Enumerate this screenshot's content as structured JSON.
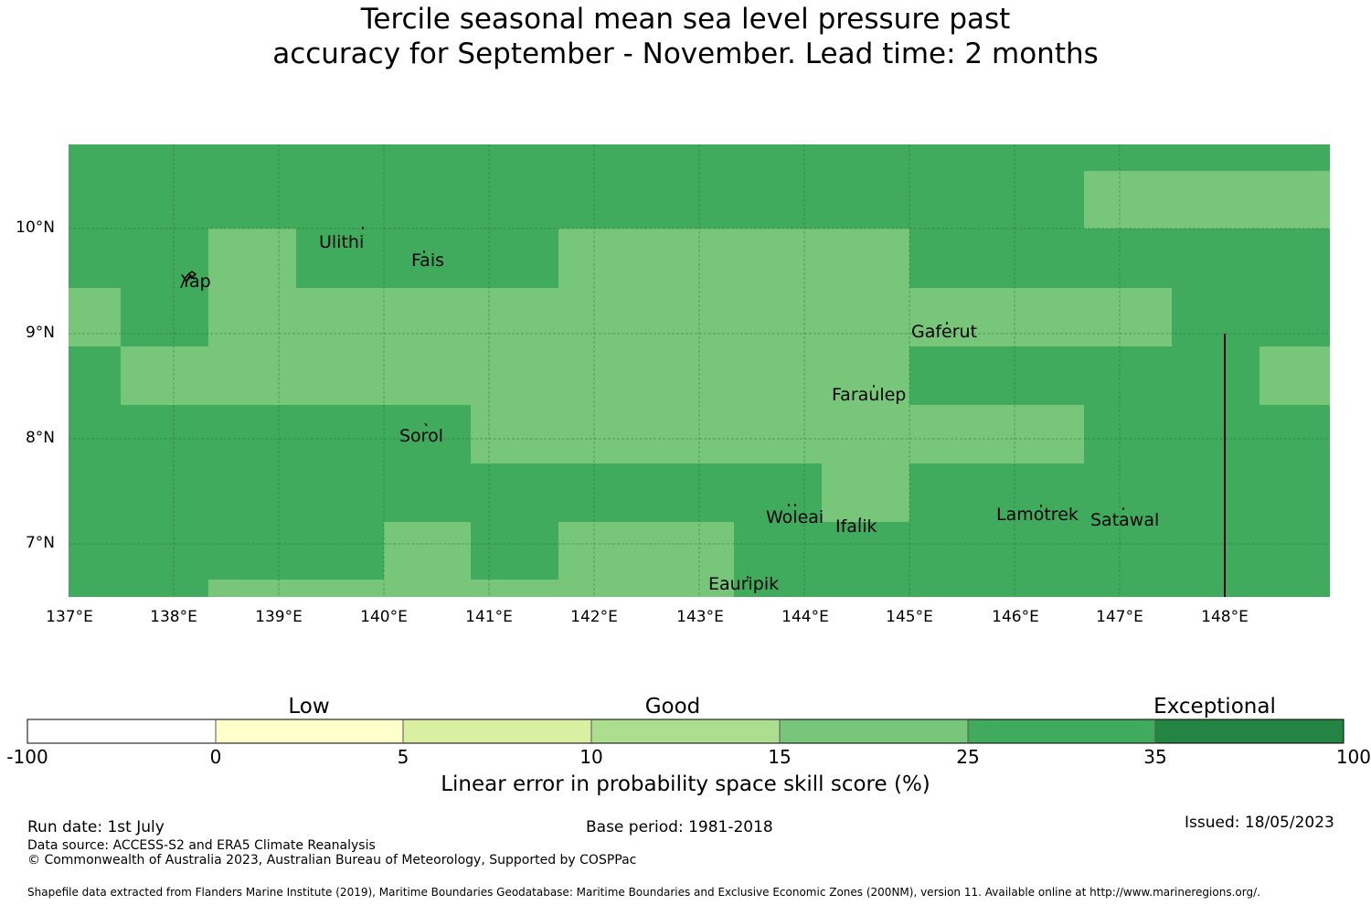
{
  "title": {
    "line1": "Tercile seasonal mean sea level pressure past",
    "line2": "accuracy for September - November. Lead time: 2 months"
  },
  "map": {
    "lat_labels": [
      "10°N",
      "9°N",
      "8°N",
      "7°N"
    ],
    "lon_labels": [
      "137°E",
      "138°E",
      "139°E",
      "140°E",
      "141°E",
      "142°E",
      "143°E",
      "144°E",
      "145°E",
      "146°E",
      "147°E",
      "148°E"
    ],
    "places": [
      {
        "name": "Ulithi"
      },
      {
        "name": "Fais"
      },
      {
        "name": "Yap"
      },
      {
        "name": "Gaferut"
      },
      {
        "name": "Faraulep"
      },
      {
        "name": "Sorol"
      },
      {
        "name": "Woleai"
      },
      {
        "name": "Ifalik"
      },
      {
        "name": "Lamotrek"
      },
      {
        "name": "Satawal"
      },
      {
        "name": "Eauripik"
      }
    ],
    "colors": {
      "good_15_25": "#78c679",
      "good_25_35": "#41ab5d"
    }
  },
  "colorbar": {
    "categories": [
      "Low",
      "Good",
      "Exceptional"
    ],
    "ticks": [
      "-100",
      "0",
      "5",
      "10",
      "15",
      "25",
      "35",
      "100"
    ],
    "colors": [
      "#ffffff",
      "#ffffcc",
      "#d9f0a3",
      "#addd8e",
      "#78c679",
      "#41ab5d",
      "#238443"
    ],
    "label": "Linear error in probability space skill score (%)"
  },
  "footer": {
    "run_date": "Run date: 1st July",
    "base_period": "Base period: 1981-2018",
    "issued": "Issued: 18/05/2023",
    "data_source": "Data source: ACCESS-S2 and ERA5 Climate Reanalysis",
    "copyright": "© Commonwealth of Australia 2023, Australian Bureau of Meteorology, Supported by COSPPac",
    "shapefile": "Shapefile data extracted from Flanders Marine Institute (2019), Maritime Boundaries Geodatabase: Maritime Boundaries and Exclusive Economic Zones (200NM), version 11. Available online at http://www.marineregions.org/."
  }
}
